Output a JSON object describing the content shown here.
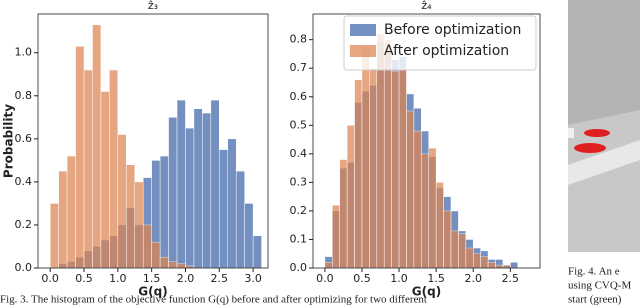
{
  "chart_data": [
    {
      "type": "histogram",
      "title": "ẑ₃",
      "x_label": "G(q)",
      "y_label": "Probability",
      "xlim": [
        -0.18,
        3.22
      ],
      "ylim": [
        0,
        1.18
      ],
      "xticks": [
        {
          "value": 0,
          "label": "0.0"
        },
        0.5,
        {
          "value": 1,
          "label": "1.0"
        },
        1.5,
        {
          "value": 2,
          "label": "2.0"
        },
        2.5,
        {
          "value": 3,
          "label": "3.0"
        }
      ],
      "yticks": [
        {
          "value": 0,
          "label": "0.0"
        },
        0.2,
        0.4,
        0.6,
        0.8,
        {
          "value": 1,
          "label": "1.0"
        }
      ],
      "series": [
        {
          "color": "#4c72b0",
          "bins": [
            0,
            0.125,
            0.25,
            0.375,
            0.5,
            0.625,
            0.75,
            0.875,
            1,
            1.125,
            1.25,
            1.375,
            1.5,
            1.625,
            1.75,
            1.875,
            2,
            2.125,
            2.25,
            2.375,
            2.5,
            2.625,
            2.75,
            2.875,
            3,
            3.125
          ],
          "values": [
            0,
            0.02,
            0.03,
            0.05,
            0.08,
            0.1,
            0.13,
            0.15,
            0.2,
            0.28,
            0.2,
            0.42,
            0.5,
            0.52,
            0.7,
            0.78,
            0.65,
            0.74,
            0.72,
            0.78,
            0.55,
            0.6,
            0.45,
            0.3,
            0.15
          ]
        },
        {
          "color": "#dd8452",
          "bins": [
            0,
            0.125,
            0.25,
            0.375,
            0.5,
            0.625,
            0.75,
            0.875,
            1,
            1.125,
            1.25,
            1.375,
            1.5,
            1.625,
            1.75,
            1.875,
            2,
            2.125,
            2.25,
            2.375,
            2.5,
            2.625,
            2.75,
            2.875,
            3,
            3.125
          ],
          "values": [
            0.3,
            0.45,
            0.52,
            1.03,
            0.92,
            1.13,
            0.82,
            0.92,
            0.62,
            0.48,
            0.4,
            0.2,
            0.12,
            0.05,
            0.03,
            0.02,
            0.01,
            0,
            0,
            0,
            0,
            0,
            0,
            0,
            0
          ]
        }
      ]
    },
    {
      "type": "histogram",
      "title": "ẑ₄",
      "x_label": "G(q)",
      "legend": "upper right",
      "xlim": [
        -0.16,
        2.9
      ],
      "ylim": [
        0,
        0.89
      ],
      "xticks": [
        {
          "value": 0,
          "label": "0.0"
        },
        0.5,
        {
          "value": 1,
          "label": "1.0"
        },
        1.5,
        {
          "value": 2,
          "label": "2.0"
        },
        2.5
      ],
      "yticks": [
        {
          "value": 0,
          "label": "0.0"
        },
        0.1,
        0.2,
        0.3,
        0.4,
        0.5,
        0.6,
        0.7,
        0.8
      ],
      "series": [
        {
          "name": "Before optimization",
          "color": "#4c72b0",
          "bins": [
            0,
            0.1,
            0.2,
            0.3,
            0.4,
            0.5,
            0.6,
            0.7,
            0.8,
            0.9,
            1,
            1.1,
            1.2,
            1.3,
            1.4,
            1.5,
            1.6,
            1.7,
            1.8,
            1.9,
            2,
            2.1,
            2.2,
            2.3,
            2.4,
            2.5,
            2.6
          ],
          "values": [
            0.04,
            0.2,
            0.35,
            0.37,
            0.58,
            0.62,
            0.64,
            0.79,
            0.76,
            0.73,
            0.74,
            0.61,
            0.56,
            0.48,
            0.39,
            0.28,
            0.25,
            0.2,
            0.13,
            0.1,
            0.07,
            0.06,
            0.03,
            0.03,
            0.01,
            0.02
          ]
        },
        {
          "name": "After optimization",
          "color": "#dd8452",
          "bins": [
            0,
            0.1,
            0.2,
            0.3,
            0.4,
            0.5,
            0.6,
            0.7,
            0.8,
            0.9,
            1,
            1.1,
            1.2,
            1.3,
            1.4,
            1.5,
            1.6,
            1.7,
            1.8,
            1.9,
            2,
            2.1,
            2.2,
            2.3,
            2.4,
            2.5,
            2.6
          ],
          "values": [
            0.02,
            0.22,
            0.38,
            0.5,
            0.66,
            0.78,
            0.7,
            0.82,
            0.8,
            0.69,
            0.7,
            0.55,
            0.48,
            0.4,
            0.42,
            0.3,
            0.2,
            0.13,
            0.12,
            0.07,
            0.05,
            0.04,
            0.02,
            0.01,
            0.01,
            0
          ]
        }
      ]
    }
  ],
  "captions": {
    "fig3": "Fig. 3.   The histogram of the objective function G(q) before and after optimizing for two different",
    "fig4": [
      "Fig. 4.   An e",
      "using CVQ-M",
      "start (green)"
    ]
  }
}
